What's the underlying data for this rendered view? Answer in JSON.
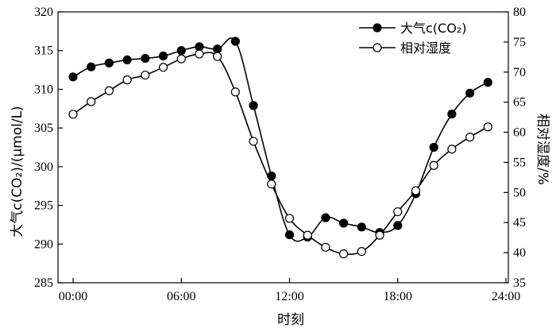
{
  "chart_data": {
    "type": "line",
    "xlabel": "时刻",
    "ylabel_left": "大气c(CO₂)/(μmol/L)",
    "ylabel_right": "相对湿度/%",
    "x_ticks": [
      "00:00",
      "06:00",
      "12:00",
      "18:00",
      "24:00"
    ],
    "x_range": [
      0,
      24
    ],
    "y_left_range": [
      285,
      320
    ],
    "y_left_ticks": [
      285,
      290,
      295,
      300,
      305,
      310,
      315,
      320
    ],
    "y_right_range": [
      35,
      80
    ],
    "y_right_ticks": [
      35,
      40,
      45,
      50,
      55,
      60,
      65,
      70,
      75,
      80
    ],
    "legend_position": "top-right",
    "grid": false,
    "series": [
      {
        "name": "大气c(CO₂)",
        "axis": "left",
        "marker": "filled-circle",
        "x": [
          0,
          1,
          2,
          3,
          4,
          5,
          6,
          7,
          8,
          9,
          10,
          11,
          12,
          13,
          14,
          15,
          16,
          17,
          18,
          19,
          20,
          21,
          22,
          23
        ],
        "values": [
          311.6,
          312.9,
          313.4,
          313.8,
          314.0,
          314.3,
          315.0,
          315.5,
          315.2,
          316.2,
          307.9,
          298.8,
          291.2,
          290.9,
          293.4,
          292.7,
          292.2,
          291.5,
          292.4,
          296.5,
          302.5,
          306.8,
          309.5,
          310.9
        ]
      },
      {
        "name": "相对湿度",
        "axis": "right",
        "marker": "open-circle",
        "x": [
          0,
          1,
          2,
          3,
          4,
          5,
          6,
          7,
          8,
          9,
          10,
          11,
          12,
          13,
          14,
          15,
          16,
          17,
          18,
          19,
          20,
          21,
          22,
          23
        ],
        "values": [
          63.0,
          65.1,
          66.9,
          68.7,
          69.5,
          70.8,
          72.2,
          73.0,
          72.6,
          66.7,
          58.5,
          51.4,
          45.7,
          42.9,
          40.9,
          39.8,
          40.2,
          42.9,
          46.8,
          50.3,
          54.5,
          57.2,
          59.2,
          60.9
        ]
      }
    ]
  }
}
